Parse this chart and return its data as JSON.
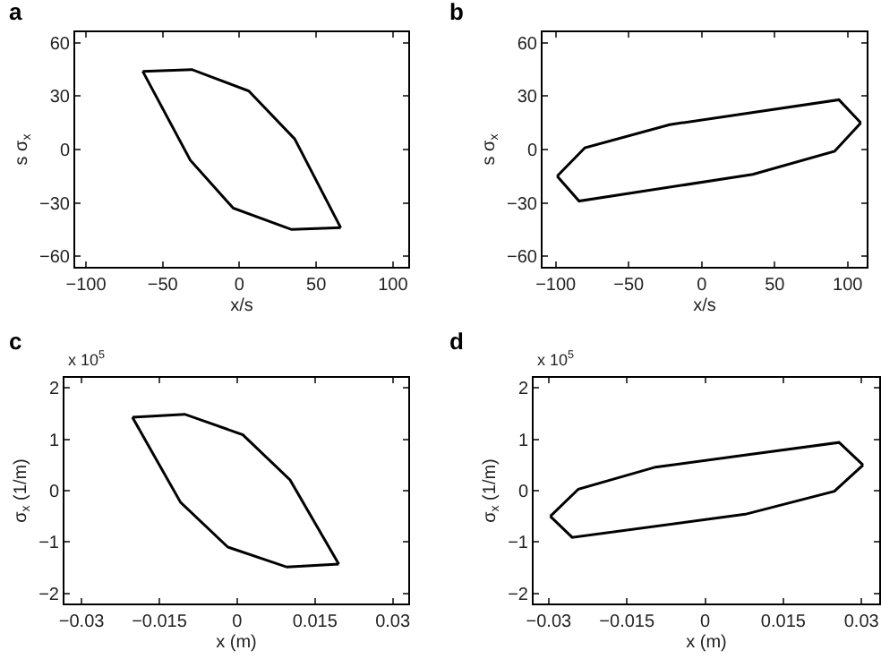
{
  "chart_data": [
    {
      "type": "line",
      "title": "a",
      "xlabel": "x/s",
      "ylabel": "s σ$_{x}$",
      "series": [
        {
          "color": "#000000",
          "x": [
            -63,
            -31,
            6,
            36,
            66
          ],
          "values": [
            44,
            45,
            33,
            6,
            -44
          ]
        },
        {
          "color": "#000000",
          "x": [
            -63,
            -32,
            -4,
            34,
            66
          ],
          "values": [
            44,
            -6,
            -33,
            -45,
            -44
          ]
        }
      ],
      "xlim": [
        -107,
        110
      ],
      "xticks": [
        -100,
        -50,
        0,
        50,
        100
      ],
      "ylim": [
        -66,
        66
      ],
      "yticks": [
        -60,
        -30,
        0,
        30,
        60
      ]
    },
    {
      "type": "line",
      "title": "b",
      "xlabel": "x/s",
      "ylabel": "s σ$_{x}$",
      "series": [
        {
          "color": "#000000",
          "x": [
            -99,
            -80,
            -22,
            94,
            109
          ],
          "values": [
            -15,
            1,
            14,
            28,
            15
          ]
        },
        {
          "color": "#000000",
          "x": [
            -99,
            -84,
            35,
            91,
            109
          ],
          "values": [
            -15,
            -29,
            -14,
            -1,
            15
          ]
        }
      ],
      "xlim": [
        -109,
        113
      ],
      "xticks": [
        -100,
        -50,
        0,
        50,
        100
      ],
      "ylim": [
        -66,
        66
      ],
      "yticks": [
        -60,
        -30,
        0,
        30,
        60
      ]
    },
    {
      "type": "line",
      "title": "c",
      "xlabel": "x (m)",
      "ylabel": "σ$_{x}$ (1/m)",
      "annotations": [
        "x 10$^{5}$"
      ],
      "series": [
        {
          "color": "#000000",
          "x": [
            -0.0202,
            -0.0101,
            0.0011,
            0.0102,
            0.0196
          ],
          "values": [
            1.43,
            1.49,
            1.09,
            0.21,
            -1.43
          ]
        },
        {
          "color": "#000000",
          "x": [
            -0.0202,
            -0.0109,
            -0.0018,
            0.0096,
            0.0196
          ],
          "values": [
            1.43,
            -0.23,
            -1.1,
            -1.49,
            -1.43
          ]
        }
      ],
      "xlim": [
        -0.0333,
        0.033
      ],
      "xticks": [
        -0.03,
        -0.015,
        0,
        0.015,
        0.03
      ],
      "ylim": [
        -2.2,
        2.2
      ],
      "yticks": [
        -2,
        -1,
        0,
        1,
        2
      ]
    },
    {
      "type": "line",
      "title": "d",
      "xlabel": "x (m)",
      "ylabel": "σ$_{x}$ (1/m)",
      "annotations": [
        "x 10$^{5}$"
      ],
      "series": [
        {
          "color": "#000000",
          "x": [
            -0.0297,
            -0.0243,
            -0.0095,
            0.0257,
            0.0303
          ],
          "values": [
            -0.5,
            0.03,
            0.46,
            0.94,
            0.5
          ]
        },
        {
          "color": "#000000",
          "x": [
            -0.0297,
            -0.0255,
            0.0077,
            0.0248,
            0.0303
          ],
          "values": [
            -0.5,
            -0.91,
            -0.46,
            -0.01,
            0.5
          ]
        }
      ],
      "xlim": [
        -0.0329,
        0.0334
      ],
      "xticks": [
        -0.03,
        -0.015,
        0,
        0.015,
        0.03
      ],
      "ylim": [
        -2.2,
        2.2
      ],
      "yticks": [
        -2,
        -1,
        0,
        1,
        2
      ]
    }
  ]
}
